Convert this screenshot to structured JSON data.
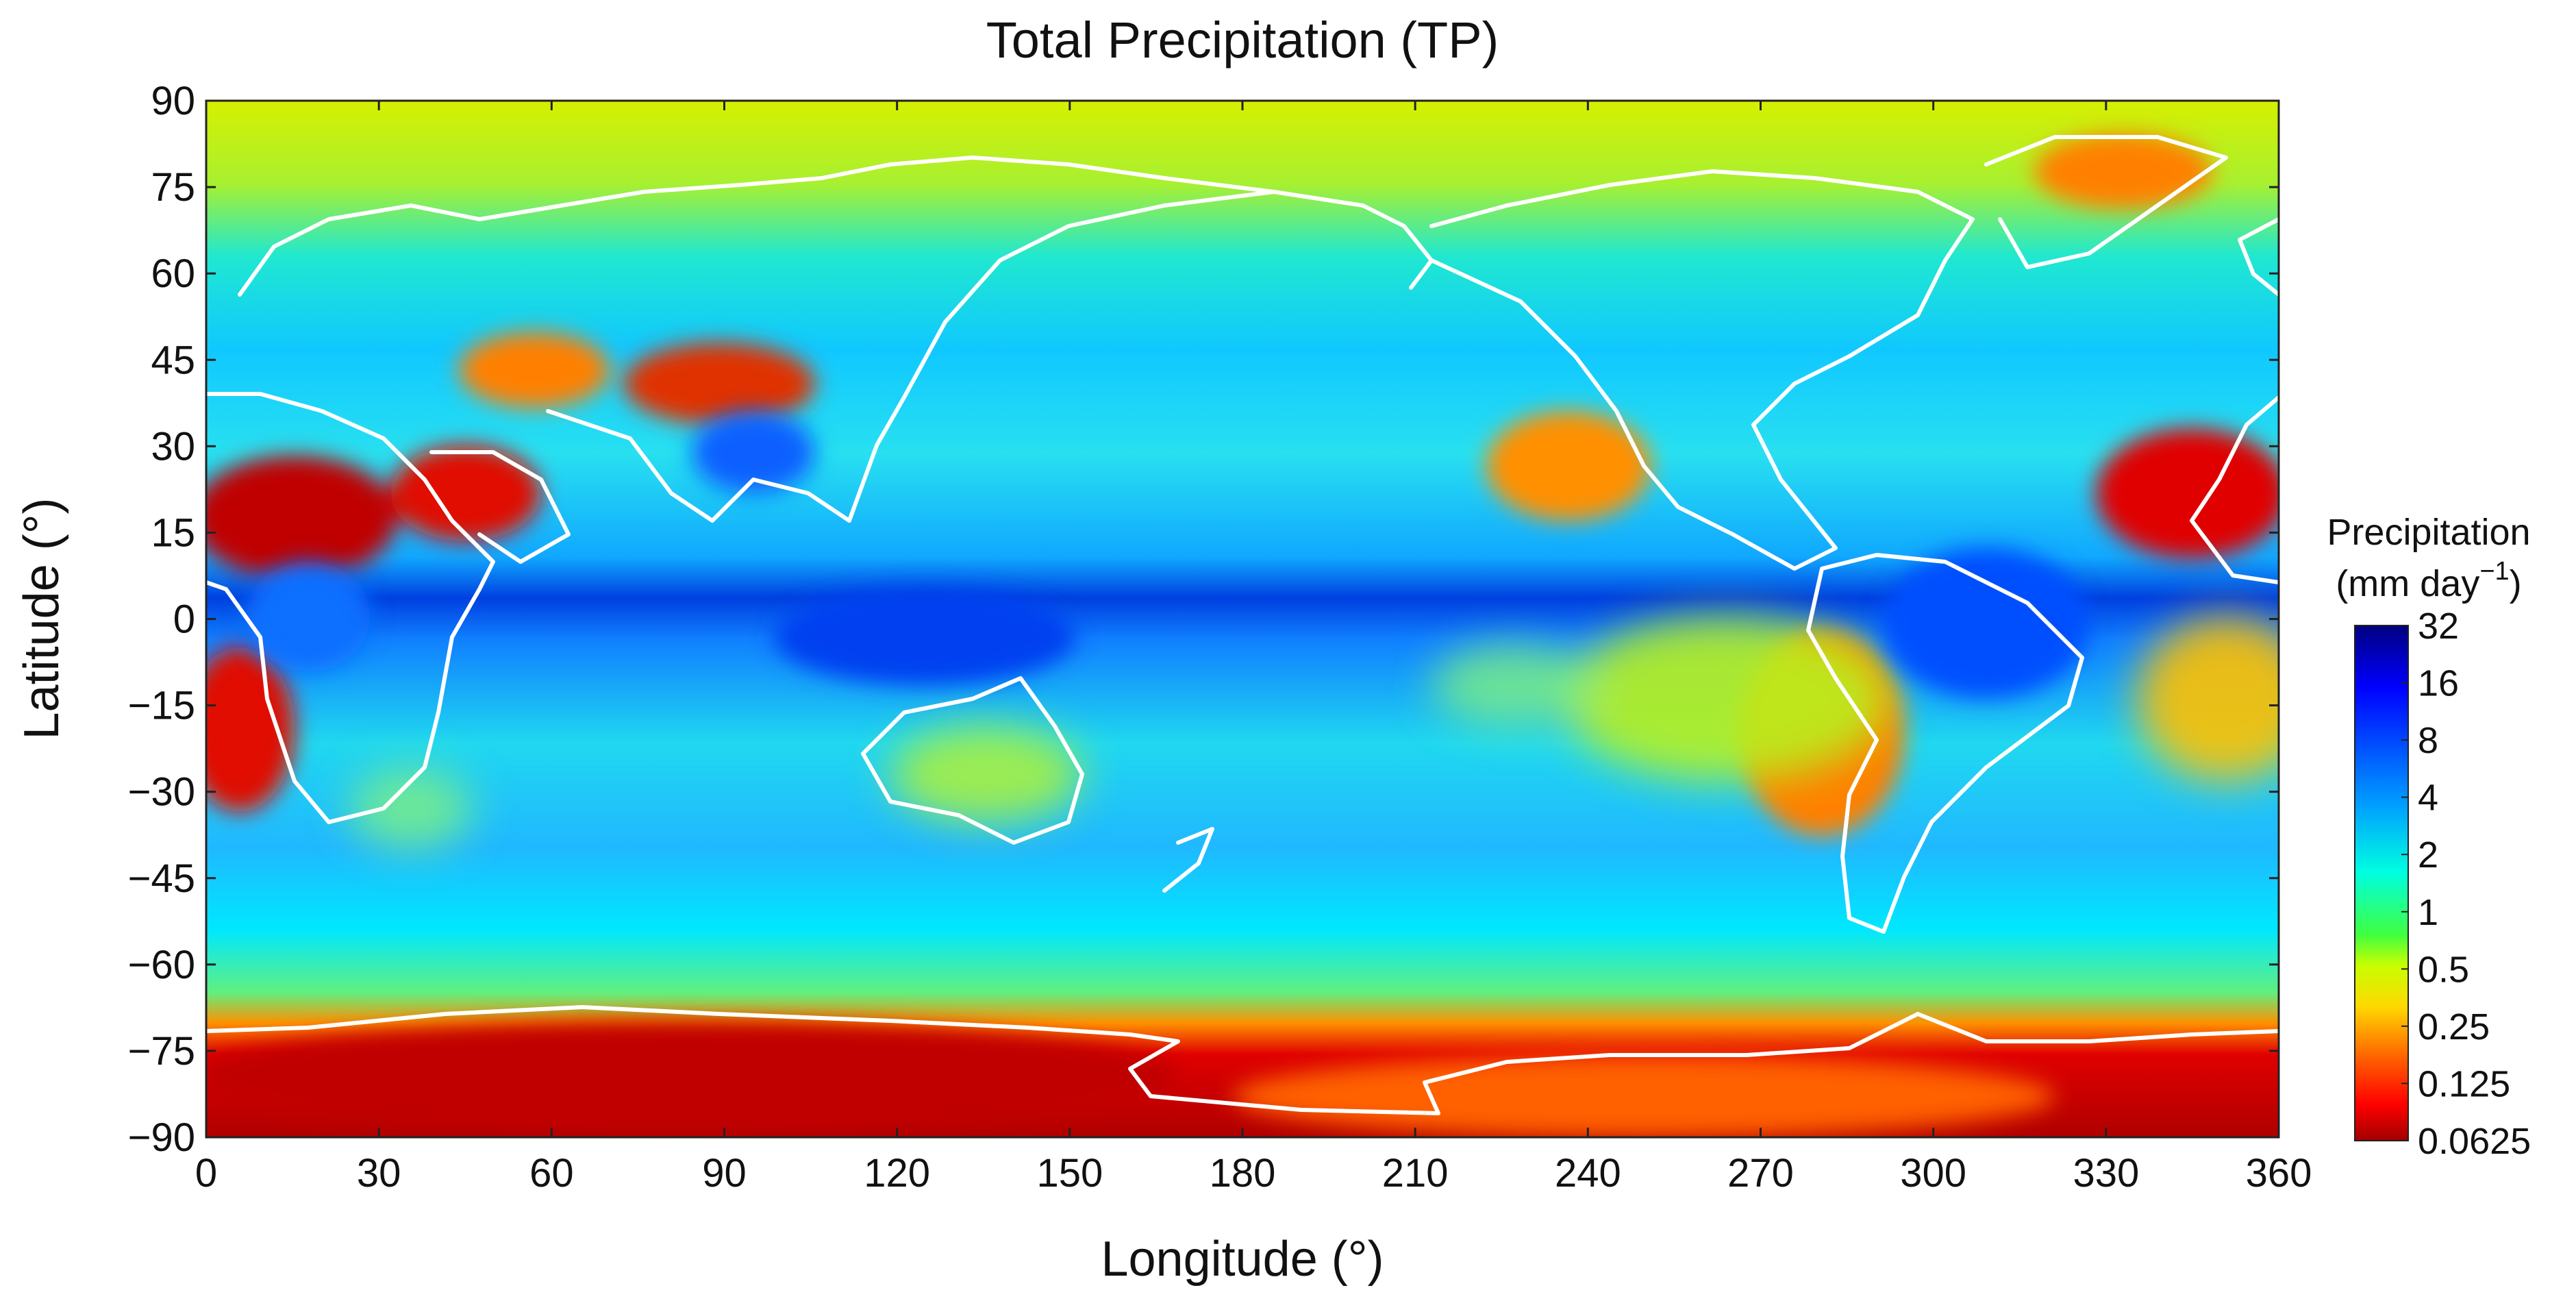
{
  "title": "Total Precipitation (TP)",
  "xaxis": {
    "label": "Longitude (°)",
    "ticks": [
      "0",
      "30",
      "60",
      "90",
      "120",
      "150",
      "180",
      "210",
      "240",
      "270",
      "300",
      "330",
      "360"
    ],
    "range": [
      0,
      360
    ]
  },
  "yaxis": {
    "label": "Latitude (°)",
    "ticks": [
      "90",
      "75",
      "60",
      "45",
      "30",
      "15",
      "0",
      "−15",
      "−30",
      "−45",
      "−60",
      "−75",
      "−90"
    ],
    "range": [
      -90,
      90
    ]
  },
  "colorbar": {
    "title_line1": "Precipitation",
    "title_line2_prefix": "(mm day",
    "title_line2_sup": "−1",
    "title_line2_suffix": ")",
    "ticks": [
      "32",
      "16",
      "8",
      "4",
      "2",
      "1",
      "0.5",
      "0.25",
      "0.125",
      "0.0625"
    ],
    "scale": "log2",
    "colormap": "jet (reversed: red = low, dark blue = high)"
  },
  "colors": {
    "dry": "#c00000",
    "low": "#ff8000",
    "moderate": "#c8f000",
    "wet": "#00e0ff",
    "very_wet": "#0040ff",
    "max": "#000090",
    "coastline": "#ffffff"
  },
  "map_layers": {
    "field": "total precipitation",
    "overlay": "white coastlines"
  }
}
